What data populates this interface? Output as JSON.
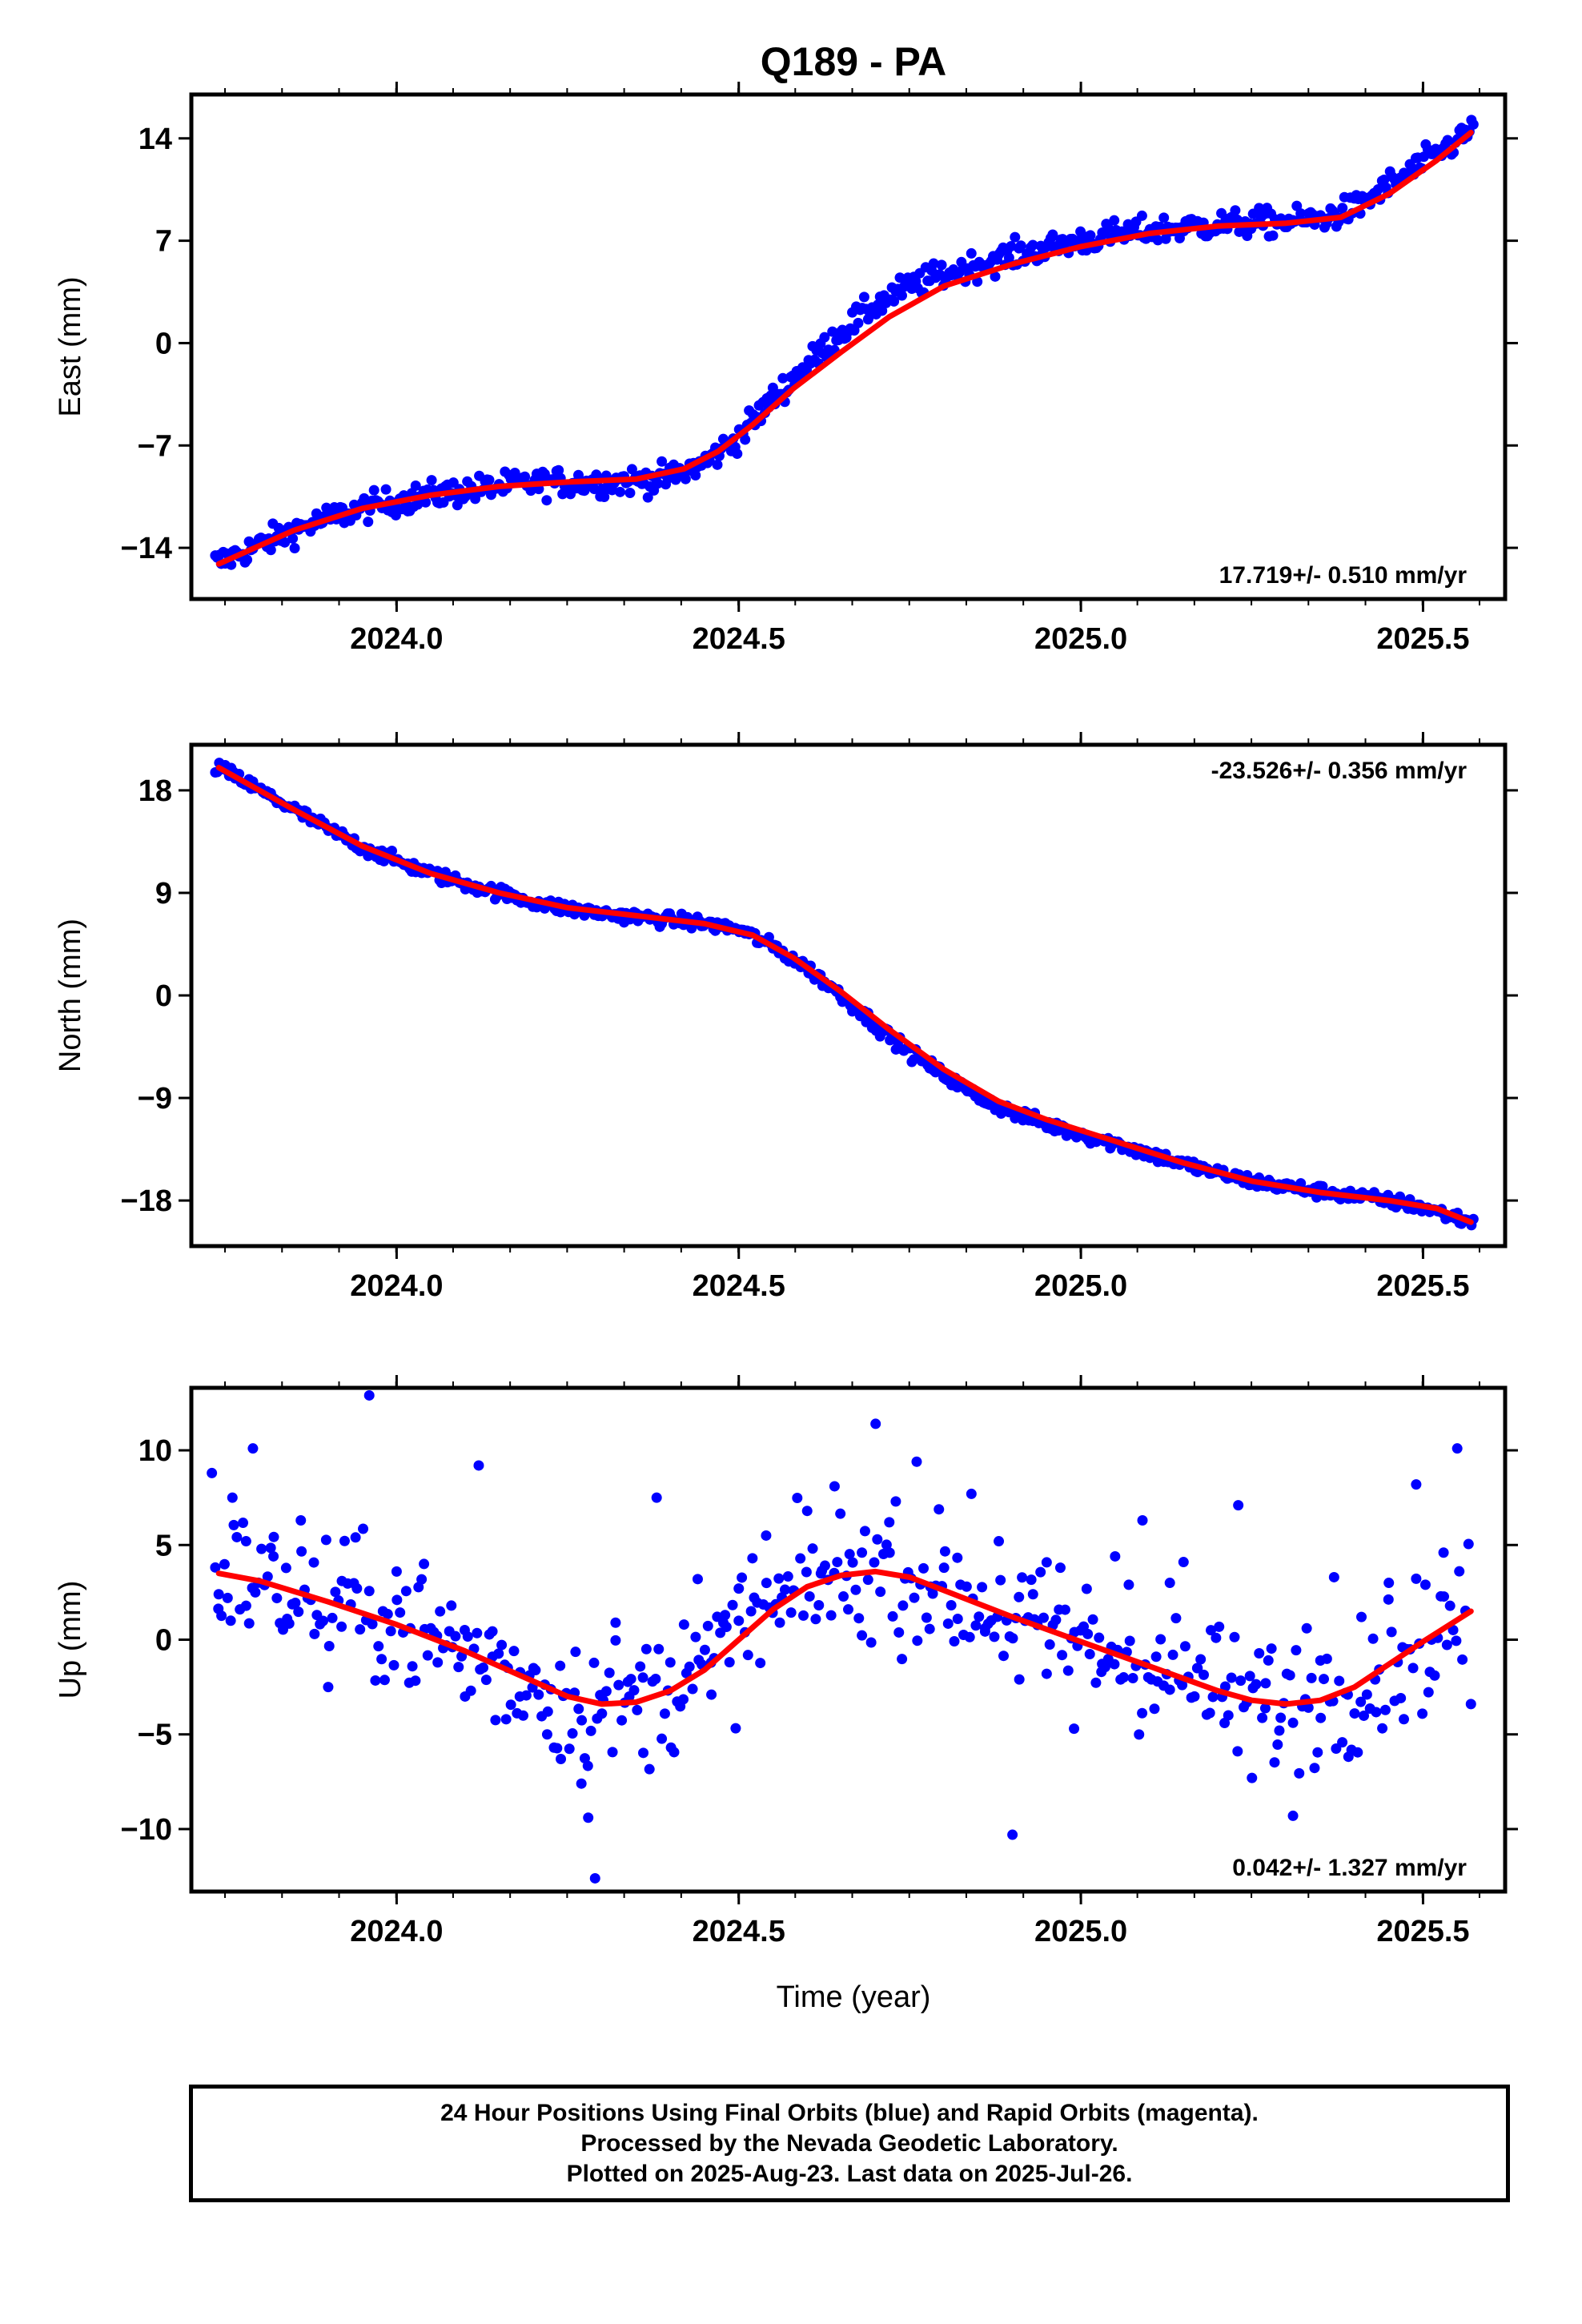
{
  "chart_data": {
    "type": "scatter",
    "title": "Q189 - PA",
    "xlabel": "Time (year)",
    "xlim": [
      2023.7,
      2025.62
    ],
    "x_ticks": [
      "2024.0",
      "2024.5",
      "2025.0",
      "2025.5"
    ],
    "grid": false,
    "colors": {
      "points": "#0000ff",
      "fit": "#ff0000",
      "frame": "#000000"
    },
    "panels": [
      {
        "id": "east",
        "ylabel": "East (mm)",
        "ylim": [
          -17.5,
          17
        ],
        "y_ticks": [
          "14",
          "7",
          "0",
          "-7",
          "-14"
        ],
        "rate": "17.719+/- 0.510 mm/yr",
        "rate_position": "bottom-right",
        "series": [
          {
            "name": "",
            "kind": "daily positions",
            "x": [
              2023.74,
              2023.8,
              2023.85,
              2023.9,
              2023.95,
              2024.0,
              2024.05,
              2024.1,
              2024.15,
              2024.2,
              2024.25,
              2024.3,
              2024.35,
              2024.4,
              2024.45,
              2024.5,
              2024.55,
              2024.6,
              2024.65,
              2024.7,
              2024.75,
              2024.8,
              2024.85,
              2024.9,
              2024.95,
              2025.0,
              2025.05,
              2025.1,
              2025.15,
              2025.2,
              2025.25,
              2025.3,
              2025.35,
              2025.4,
              2025.45,
              2025.5,
              2025.57
            ],
            "y": [
              -15.0,
              -13.8,
              -12.8,
              -12.0,
              -11.3,
              -10.8,
              -10.4,
              -10.1,
              -9.8,
              -9.6,
              -9.5,
              -9.5,
              -9.4,
              -9.2,
              -8.2,
              -6.4,
              -3.8,
              -1.5,
              0.8,
              2.6,
              3.9,
              4.7,
              5.4,
              6.0,
              6.5,
              7.0,
              7.4,
              7.7,
              7.9,
              8.1,
              8.2,
              8.3,
              8.5,
              9.2,
              10.8,
              12.3,
              14.5
            ]
          },
          {
            "name": "",
            "kind": "fit",
            "x": [
              2023.74,
              2023.85,
              2023.95,
              2024.05,
              2024.15,
              2024.25,
              2024.35,
              2024.42,
              2024.47,
              2024.52,
              2024.58,
              2024.65,
              2024.72,
              2024.8,
              2024.9,
              2025.0,
              2025.1,
              2025.2,
              2025.3,
              2025.38,
              2025.45,
              2025.52,
              2025.57
            ],
            "y": [
              -15.1,
              -12.8,
              -11.3,
              -10.4,
              -9.8,
              -9.5,
              -9.3,
              -8.6,
              -7.4,
              -5.6,
              -3.1,
              -0.6,
              1.8,
              3.9,
              5.4,
              6.6,
              7.5,
              8.0,
              8.2,
              8.6,
              10.2,
              12.5,
              14.4
            ]
          }
        ]
      },
      {
        "id": "north",
        "ylabel": "North (mm)",
        "ylim": [
          -22,
          22
        ],
        "y_ticks": [
          "18",
          "9",
          "0",
          "-9",
          "-18"
        ],
        "rate": "-23.526+/- 0.356 mm/yr",
        "rate_position": "top-right",
        "series": [
          {
            "name": "",
            "kind": "daily positions",
            "x": [
              2023.74,
              2023.8,
              2023.85,
              2023.9,
              2023.95,
              2024.0,
              2024.05,
              2024.1,
              2024.15,
              2024.2,
              2024.25,
              2024.3,
              2024.35,
              2024.4,
              2024.45,
              2024.5,
              2024.55,
              2024.6,
              2024.65,
              2024.7,
              2024.75,
              2024.8,
              2024.85,
              2024.9,
              2024.95,
              2025.0,
              2025.05,
              2025.1,
              2025.15,
              2025.2,
              2025.25,
              2025.3,
              2025.35,
              2025.4,
              2025.45,
              2025.5,
              2025.57
            ],
            "y": [
              20.0,
              18.0,
              16.3,
              14.6,
              13.0,
              11.8,
              10.7,
              9.8,
              9.0,
              8.2,
              7.6,
              7.2,
              6.9,
              6.6,
              6.3,
              5.8,
              4.3,
              2.4,
              0.0,
              -2.6,
              -5.0,
              -7.0,
              -8.9,
              -10.3,
              -11.3,
              -12.2,
              -13.0,
              -13.9,
              -14.8,
              -15.6,
              -16.3,
              -16.8,
              -17.2,
              -17.6,
              -18.0,
              -18.6,
              -19.9
            ]
          },
          {
            "name": "",
            "kind": "fit",
            "x": [
              2023.74,
              2023.85,
              2023.95,
              2024.05,
              2024.15,
              2024.25,
              2024.35,
              2024.45,
              2024.52,
              2024.58,
              2024.65,
              2024.72,
              2024.8,
              2024.88,
              2024.95,
              2025.05,
              2025.15,
              2025.25,
              2025.35,
              2025.45,
              2025.52,
              2025.57
            ],
            "y": [
              20.0,
              16.3,
              13.1,
              10.7,
              9.0,
              7.7,
              7.0,
              6.3,
              5.3,
              3.3,
              0.3,
              -3.0,
              -6.5,
              -9.3,
              -10.9,
              -12.8,
              -14.7,
              -16.3,
              -17.3,
              -18.0,
              -18.7,
              -19.9
            ]
          }
        ]
      },
      {
        "id": "up",
        "ylabel": "Up (mm)",
        "ylim": [
          -13.3,
          13.3
        ],
        "y_ticks": [
          "10",
          "5",
          "0",
          "-5",
          "-10"
        ],
        "rate": "0.042+/- 1.327 mm/yr",
        "rate_position": "bottom-right",
        "series": [
          {
            "name": "",
            "kind": "daily positions",
            "x": [
              2023.73,
              2023.74,
              2023.76,
              2023.78,
              2023.79,
              2023.82,
              2023.84,
              2023.86,
              2023.88,
              2023.9,
              2023.92,
              2023.94,
              2023.96,
              2023.98,
              2024.0,
              2024.02,
              2024.04,
              2024.06,
              2024.08,
              2024.1,
              2024.12,
              2024.14,
              2024.16,
              2024.18,
              2024.2,
              2024.22,
              2024.24,
              2024.26,
              2024.27,
              2024.28,
              2024.29,
              2024.3,
              2024.32,
              2024.34,
              2024.36,
              2024.38,
              2024.4,
              2024.42,
              2024.44,
              2024.46,
              2024.48,
              2024.5,
              2024.52,
              2024.54,
              2024.56,
              2024.58,
              2024.6,
              2024.62,
              2024.64,
              2024.66,
              2024.68,
              2024.7,
              2024.72,
              2024.74,
              2024.76,
              2024.78,
              2024.8,
              2024.82,
              2024.84,
              2024.86,
              2024.88,
              2024.9,
              2024.91,
              2024.93,
              2024.95,
              2024.97,
              2024.99,
              2025.01,
              2025.03,
              2025.05,
              2025.07,
              2025.09,
              2025.11,
              2025.13,
              2025.15,
              2025.17,
              2025.19,
              2025.21,
              2025.23,
              2025.25,
              2025.27,
              2025.29,
              2025.31,
              2025.33,
              2025.35,
              2025.37,
              2025.39,
              2025.41,
              2025.43,
              2025.45,
              2025.47,
              2025.49,
              2025.51,
              2025.53,
              2025.55,
              2025.57
            ],
            "y": [
              8.8,
              2.4,
              7.5,
              5.2,
              10.1,
              4.4,
              1.1,
              6.3,
              0.3,
              -2.5,
              3.1,
              5.4,
              12.9,
              1.5,
              3.6,
              0.6,
              4.0,
              -1.2,
              1.8,
              -3.0,
              9.2,
              -0.9,
              -4.2,
              -3.0,
              -1.5,
              -5.0,
              -6.3,
              -2.8,
              -7.6,
              -9.4,
              -12.6,
              -3.9,
              0.9,
              -3.0,
              -2.0,
              7.5,
              -1.2,
              0.8,
              3.2,
              -2.9,
              1.3,
              2.7,
              4.3,
              5.5,
              0.9,
              2.6,
              6.8,
              3.5,
              8.1,
              1.6,
              4.6,
              11.4,
              6.2,
              1.8,
              9.4,
              2.8,
              3.8,
              1.1,
              7.7,
              0.6,
              5.2,
              -10.3,
              -2.1,
              2.4,
              -1.8,
              3.8,
              -4.7,
              0.3,
              -1.7,
              4.4,
              2.9,
              6.3,
              -0.9,
              3.0,
              4.1,
              -1.5,
              0.5,
              -4.4,
              7.1,
              -7.3,
              -2.3,
              -4.8,
              -9.3,
              0.6,
              -1.1,
              3.3,
              -2.9,
              1.2,
              -2.1,
              3.0,
              -0.4,
              8.2,
              -1.7,
              4.6,
              10.1,
              -3.4
            ]
          },
          {
            "name": "",
            "kind": "fit",
            "x": [
              2023.74,
              2023.8,
              2023.9,
              2024.0,
              2024.1,
              2024.2,
              2024.25,
              2024.3,
              2024.35,
              2024.4,
              2024.45,
              2024.5,
              2024.55,
              2024.6,
              2024.65,
              2024.7,
              2024.75,
              2024.8,
              2024.9,
              2025.0,
              2025.1,
              2025.2,
              2025.25,
              2025.3,
              2025.35,
              2025.4,
              2025.45,
              2025.5,
              2025.57
            ],
            "y": [
              3.5,
              3.1,
              2.0,
              0.8,
              -0.6,
              -2.2,
              -3.0,
              -3.4,
              -3.3,
              -2.7,
              -1.6,
              0.0,
              1.6,
              2.8,
              3.4,
              3.6,
              3.3,
              2.6,
              1.2,
              -0.1,
              -1.4,
              -2.7,
              -3.2,
              -3.4,
              -3.2,
              -2.5,
              -1.3,
              -0.1,
              1.5
            ]
          }
        ]
      }
    ]
  },
  "footer": {
    "lines": [
      "24 Hour Positions Using Final Orbits (blue) and Rapid Orbits (magenta).",
      "Processed by the Nevada Geodetic Laboratory.",
      "Plotted on 2025-Aug-23. Last data on 2025-Jul-26."
    ]
  }
}
